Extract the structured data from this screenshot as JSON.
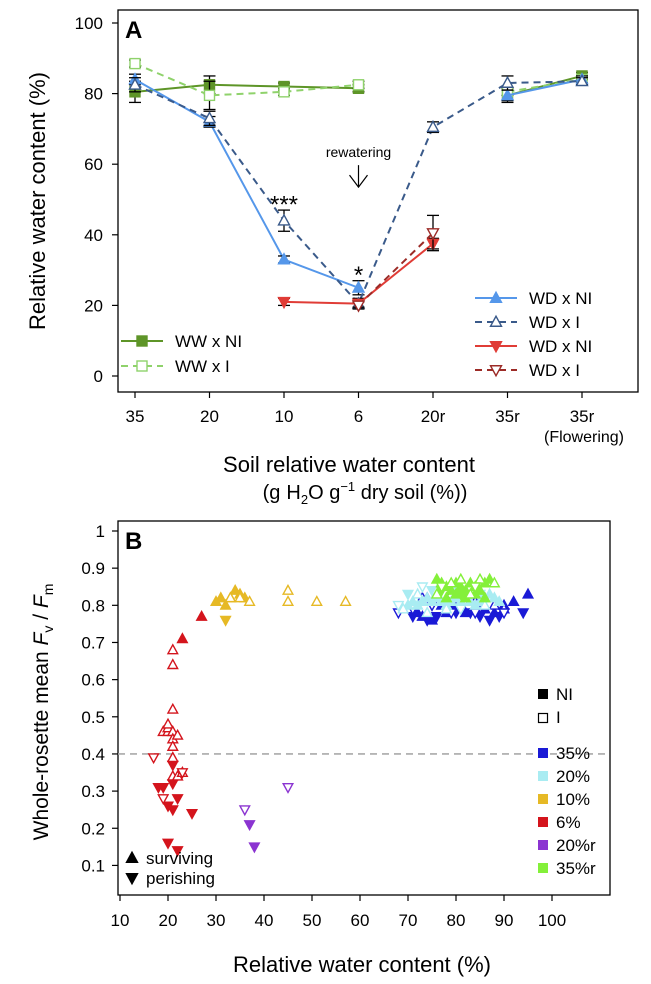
{
  "panel_a": {
    "label": "A",
    "ylabel": "Relative water content (%)",
    "xlabel": "Soil relative water content",
    "xlabel2_pre": "(g",
    "xlabel2_h": "H",
    "xlabel2_sub": "2",
    "xlabel2_mid": "O g",
    "xlabel2_sup": "−1",
    "xlabel2_post": " dry soil (%))",
    "rewatering": "rewatering",
    "sig_triple": "***",
    "sig_single": "*"
  },
  "panel_b": {
    "label": "B",
    "xlabel": "Relative water content (%)",
    "ylabel_pre": "Whole-rosette mean  ",
    "ylabel_fv": "F",
    "ylabel_fv_sub": "v",
    "ylabel_slash": " / ",
    "ylabel_fm": "F",
    "ylabel_fm_sub": "m",
    "key_surviving": "surviving",
    "key_perishing": "perishing",
    "legend_ni": "NI",
    "legend_i": "I"
  },
  "colors": {
    "ww_green": "#5e9528",
    "ww_light": "#8fd26b",
    "wd_blue": "#5597ea",
    "wd_navy": "#3a5a8a",
    "wd_red": "#e03c36",
    "wd_darkred": "#9c2b27",
    "c35": "#1a1ad6",
    "c20": "#a9ecf2",
    "c10": "#e6b925",
    "c6": "#d4141c",
    "c20r": "#8b34d1",
    "c35r": "#84f03a",
    "threshold": "#aaaaaa"
  },
  "chart_data": [
    {
      "type": "line",
      "panel": "A",
      "xlabel": "Soil relative water content (g H2O g-1 dry soil (%))",
      "ylabel": "Relative water content (%)",
      "categories": [
        "35",
        "20",
        "10",
        "6",
        "20r",
        "35r",
        "35r"
      ],
      "category_sublabels": [
        "",
        "",
        "",
        "",
        "",
        "",
        "(Flowering)"
      ],
      "ylim": [
        0,
        100
      ],
      "yticks": [
        0,
        20,
        40,
        60,
        80,
        100
      ],
      "grid": false,
      "legend_position": [
        "bottom-left",
        "bottom-right"
      ],
      "series": [
        {
          "name": "WW x NI",
          "color": "#5e9528",
          "line": "solid",
          "marker": "filled-square",
          "values": [
            80.5,
            82.5,
            82,
            81.5,
            null,
            79.5,
            85
          ],
          "err": [
            3,
            2.5,
            1,
            1,
            null,
            2,
            1
          ]
        },
        {
          "name": "WW x I",
          "color": "#8fd26b",
          "line": "dashed",
          "marker": "open-square",
          "values": [
            88.5,
            79.5,
            80.5,
            82.5,
            null,
            80.5,
            84
          ],
          "err": [
            1,
            4,
            1,
            1,
            null,
            1,
            1
          ]
        },
        {
          "name": "WD x NI",
          "color": "#5597ea",
          "line": "solid",
          "marker": "filled-triangle-up",
          "values": [
            84,
            72,
            33,
            25,
            null,
            79.5,
            84
          ],
          "err": [
            1.5,
            1.5,
            1,
            2,
            null,
            1.5,
            1
          ]
        },
        {
          "name": "WD x I",
          "color": "#3a5a8a",
          "line": "dashed",
          "marker": "open-triangle-up",
          "values": [
            82.5,
            73,
            44,
            20.5,
            70.5,
            83,
            83.5
          ],
          "err": [
            2,
            2,
            3,
            1.5,
            1.5,
            2,
            1
          ]
        },
        {
          "name": "WD x NI",
          "color": "#e03c36",
          "line": "solid",
          "marker": "filled-triangle-down",
          "values": [
            null,
            null,
            21,
            20.5,
            37.5,
            null,
            null
          ],
          "err": [
            null,
            null,
            1,
            1,
            1.5,
            null,
            null
          ]
        },
        {
          "name": "WD x I",
          "color": "#9c2b27",
          "line": "dashed",
          "marker": "open-triangle-down",
          "values": [
            null,
            null,
            null,
            20,
            40.5,
            null,
            null
          ],
          "err": [
            null,
            null,
            null,
            1,
            5,
            null,
            null
          ]
        }
      ],
      "annotations": [
        {
          "text": "***",
          "category": "10",
          "y": 48
        },
        {
          "text": "*",
          "category": "6",
          "y": 28
        },
        {
          "text": "rewatering",
          "category": "6",
          "y": 62,
          "arrow": true
        }
      ]
    },
    {
      "type": "scatter",
      "panel": "B",
      "xlabel": "Relative water content (%)",
      "ylabel": "Whole-rosette mean Fv / Fm",
      "xlim": [
        10,
        100
      ],
      "ylim": [
        0.05,
        1
      ],
      "xticks": [
        10,
        20,
        30,
        40,
        50,
        60,
        70,
        80,
        90,
        100
      ],
      "yticks": [
        0.1,
        0.2,
        0.3,
        0.4,
        0.5,
        0.6,
        0.7,
        0.8,
        0.9,
        1
      ],
      "threshold": 0.4,
      "grid": false,
      "legend_position": "right",
      "legend_groups": [
        "NI",
        "I"
      ],
      "marker_key": [
        "surviving",
        "perishing"
      ],
      "series": [
        {
          "name": "35%",
          "color": "#1a1ad6",
          "ni_up": [
            [
              72,
              0.78
            ],
            [
              73,
              0.77
            ],
            [
              75,
              0.76
            ],
            [
              77,
              0.8
            ],
            [
              78,
              0.78
            ],
            [
              79,
              0.79
            ],
            [
              80,
              0.8
            ],
            [
              82,
              0.78
            ],
            [
              84,
              0.79
            ],
            [
              85,
              0.8
            ],
            [
              86,
              0.79
            ],
            [
              88,
              0.78
            ],
            [
              90,
              0.8
            ],
            [
              92,
              0.81
            ],
            [
              95,
              0.83
            ],
            [
              74,
              0.82
            ],
            [
              83,
              0.81
            ]
          ],
          "ni_down": [
            [
              71,
              0.77
            ],
            [
              74,
              0.76
            ],
            [
              76,
              0.77
            ],
            [
              78,
              0.79
            ],
            [
              80,
              0.78
            ],
            [
              83,
              0.78
            ],
            [
              85,
              0.77
            ],
            [
              87,
              0.76
            ],
            [
              89,
              0.77
            ],
            [
              94,
              0.78
            ]
          ],
          "i_up": [
            [
              73,
              0.82
            ],
            [
              76,
              0.81
            ],
            [
              79,
              0.83
            ],
            [
              82,
              0.82
            ],
            [
              84,
              0.81
            ],
            [
              86,
              0.82
            ],
            [
              88,
              0.8
            ],
            [
              90,
              0.79
            ]
          ],
          "i_down": [
            [
              68,
              0.78
            ],
            [
              71,
              0.79
            ],
            [
              75,
              0.8
            ],
            [
              79,
              0.78
            ],
            [
              84,
              0.78
            ],
            [
              90,
              0.78
            ]
          ]
        },
        {
          "name": "20%",
          "color": "#a9ecf2",
          "ni_up": [
            [
              70,
              0.8
            ],
            [
              71,
              0.81
            ],
            [
              72,
              0.8
            ],
            [
              73,
              0.81
            ],
            [
              74,
              0.82
            ],
            [
              75,
              0.81
            ],
            [
              76,
              0.82
            ],
            [
              77,
              0.81
            ],
            [
              78,
              0.8
            ],
            [
              79,
              0.81
            ],
            [
              80,
              0.82
            ],
            [
              81,
              0.81
            ],
            [
              82,
              0.82
            ],
            [
              83,
              0.81
            ],
            [
              84,
              0.8
            ],
            [
              85,
              0.81
            ],
            [
              86,
              0.82
            ],
            [
              87,
              0.83
            ],
            [
              88,
              0.82
            ],
            [
              89,
              0.81
            ]
          ],
          "ni_down": [
            [
              70,
              0.83
            ],
            [
              75,
              0.84
            ],
            [
              80,
              0.84
            ],
            [
              85,
              0.83
            ]
          ],
          "i_up": [
            [
              69,
              0.79
            ],
            [
              72,
              0.83
            ],
            [
              74,
              0.78
            ],
            [
              76,
              0.84
            ],
            [
              78,
              0.79
            ],
            [
              80,
              0.83
            ],
            [
              83,
              0.85
            ],
            [
              86,
              0.8
            ]
          ],
          "i_down": [
            [
              68,
              0.8
            ],
            [
              73,
              0.85
            ],
            [
              77,
              0.84
            ],
            [
              81,
              0.79
            ]
          ]
        },
        {
          "name": "10%",
          "color": "#e6b925",
          "ni_up": [
            [
              30,
              0.81
            ],
            [
              31,
              0.82
            ],
            [
              32,
              0.8
            ],
            [
              33,
              0.82
            ],
            [
              34,
              0.84
            ],
            [
              35,
              0.83
            ],
            [
              36,
              0.82
            ]
          ],
          "ni_down": [
            [
              32,
              0.76
            ]
          ],
          "i_up": [
            [
              37,
              0.81
            ],
            [
              45,
              0.84
            ],
            [
              45,
              0.81
            ],
            [
              51,
              0.81
            ],
            [
              57,
              0.81
            ],
            [
              35,
              0.82
            ],
            [
              33,
              0.82
            ]
          ],
          "i_down": []
        },
        {
          "name": "6%",
          "color": "#d4141c",
          "ni_up": [
            [
              23,
              0.71
            ],
            [
              27,
              0.77
            ]
          ],
          "ni_down": [
            [
              18,
              0.31
            ],
            [
              19,
              0.31
            ],
            [
              20,
              0.26
            ],
            [
              21,
              0.37
            ],
            [
              21,
              0.25
            ],
            [
              22,
              0.28
            ],
            [
              20,
              0.16
            ],
            [
              21,
              0.32
            ],
            [
              22,
              0.14
            ],
            [
              25,
              0.24
            ]
          ],
          "i_up": [
            [
              19,
              0.46
            ],
            [
              20,
              0.46
            ],
            [
              20,
              0.47
            ],
            [
              20,
              0.48
            ],
            [
              21,
              0.46
            ],
            [
              21,
              0.44
            ],
            [
              21,
              0.42
            ],
            [
              21,
              0.39
            ],
            [
              21,
              0.52
            ],
            [
              21,
              0.64
            ],
            [
              21,
              0.68
            ],
            [
              22,
              0.45
            ],
            [
              21,
              0.34
            ],
            [
              22,
              0.34
            ],
            [
              23,
              0.35
            ]
          ],
          "i_down": [
            [
              17,
              0.39
            ],
            [
              19,
              0.28
            ],
            [
              23,
              0.35
            ]
          ]
        },
        {
          "name": "20%r",
          "color": "#8b34d1",
          "ni_up": [],
          "ni_down": [
            [
              37,
              0.21
            ],
            [
              38,
              0.15
            ]
          ],
          "i_up": [],
          "i_down": [
            [
              36,
              0.25
            ],
            [
              45,
              0.31
            ]
          ]
        },
        {
          "name": "35%r",
          "color": "#84f03a",
          "ni_up": [
            [
              76,
              0.87
            ],
            [
              77,
              0.86
            ],
            [
              78,
              0.85
            ],
            [
              79,
              0.84
            ],
            [
              80,
              0.86
            ],
            [
              81,
              0.85
            ],
            [
              82,
              0.84
            ],
            [
              83,
              0.86
            ],
            [
              84,
              0.85
            ],
            [
              85,
              0.84
            ],
            [
              86,
              0.86
            ],
            [
              87,
              0.87
            ],
            [
              78,
              0.82
            ],
            [
              80,
              0.83
            ],
            [
              82,
              0.82
            ],
            [
              84,
              0.83
            ],
            [
              86,
              0.82
            ]
          ],
          "ni_down": [
            [
              77,
              0.84
            ],
            [
              81,
              0.83
            ]
          ],
          "i_up": [
            [
              76,
              0.83
            ],
            [
              79,
              0.86
            ],
            [
              81,
              0.87
            ],
            [
              83,
              0.83
            ],
            [
              85,
              0.87
            ],
            [
              88,
              0.86
            ]
          ],
          "i_down": [
            [
              77,
              0.85
            ],
            [
              84,
              0.85
            ]
          ]
        }
      ]
    }
  ]
}
